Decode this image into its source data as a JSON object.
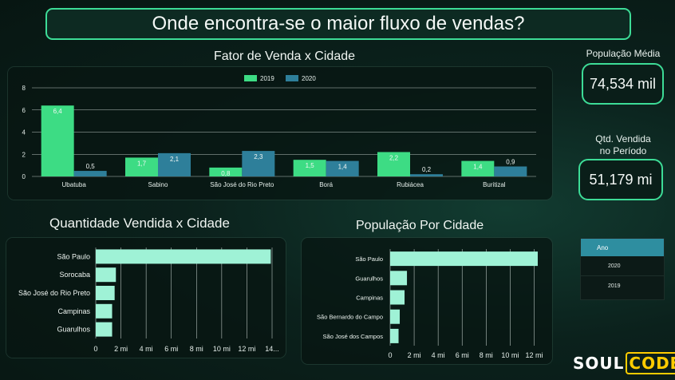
{
  "page_title": "Onde encontra-se o maior fluxo de vendas?",
  "kpis": {
    "populacao_label": "População Média",
    "populacao_value": "74,534 mil",
    "vendida_label_line1": "Qtd. Vendida",
    "vendida_label_line2": "no Período",
    "vendida_value": "51,179 mi"
  },
  "filter": {
    "header": "Ano",
    "options": [
      "2020",
      "2019"
    ]
  },
  "logo": {
    "part1": "SOUL",
    "part2": "CODE"
  },
  "colors": {
    "series_2019": "#3ddc84",
    "series_2020": "#2e7f9a",
    "hbar": "#9ff2d6",
    "accent": "#3ddc97"
  },
  "chart_data": [
    {
      "type": "bar",
      "title": "Fator de Venda x Cidade",
      "categories": [
        "Ubatuba",
        "Sabino",
        "São José do Rio Preto",
        "Borá",
        "Rubiácea",
        "Buritizal"
      ],
      "series": [
        {
          "name": "2019",
          "values": [
            6.4,
            1.7,
            0.8,
            1.5,
            2.2,
            1.4
          ],
          "labels": [
            "6,4",
            "1,7",
            "0,8",
            "1,5",
            "2,2",
            "1,4"
          ]
        },
        {
          "name": "2020",
          "values": [
            0.5,
            2.1,
            2.3,
            1.4,
            0.2,
            0.9
          ],
          "labels": [
            "0,5",
            "2,1",
            "2,3",
            "1,4",
            "0,2",
            "0,9"
          ]
        }
      ],
      "ylim": [
        0,
        8
      ],
      "yticks": [
        "0",
        "2",
        "4",
        "6",
        "8"
      ],
      "grid": true,
      "legend": "top-center"
    },
    {
      "type": "bar",
      "orientation": "horizontal",
      "title": "Quantidade Vendida x Cidade",
      "categories": [
        "São Paulo",
        "Sorocaba",
        "São José do Rio Preto",
        "Campinas",
        "Guarulhos"
      ],
      "values": [
        13.9,
        1.6,
        1.5,
        1.3,
        1.3
      ],
      "xlim": [
        0,
        14
      ],
      "xticks": [
        "0",
        "2 mi",
        "4 mi",
        "6 mi",
        "8 mi",
        "10 mi",
        "12 mi",
        "14..."
      ],
      "grid": true
    },
    {
      "type": "bar",
      "orientation": "horizontal",
      "title": "População Por Cidade",
      "categories": [
        "São Paulo",
        "Guarulhos",
        "Campinas",
        "São Bernardo do Campo",
        "São José dos Campos"
      ],
      "values": [
        12.3,
        1.4,
        1.2,
        0.8,
        0.7
      ],
      "xlim": [
        0,
        12.9
      ],
      "xticks": [
        "0",
        "2 mi",
        "4 mi",
        "6 mi",
        "8 mi",
        "10 mi",
        "12 mi"
      ],
      "grid": true
    }
  ]
}
